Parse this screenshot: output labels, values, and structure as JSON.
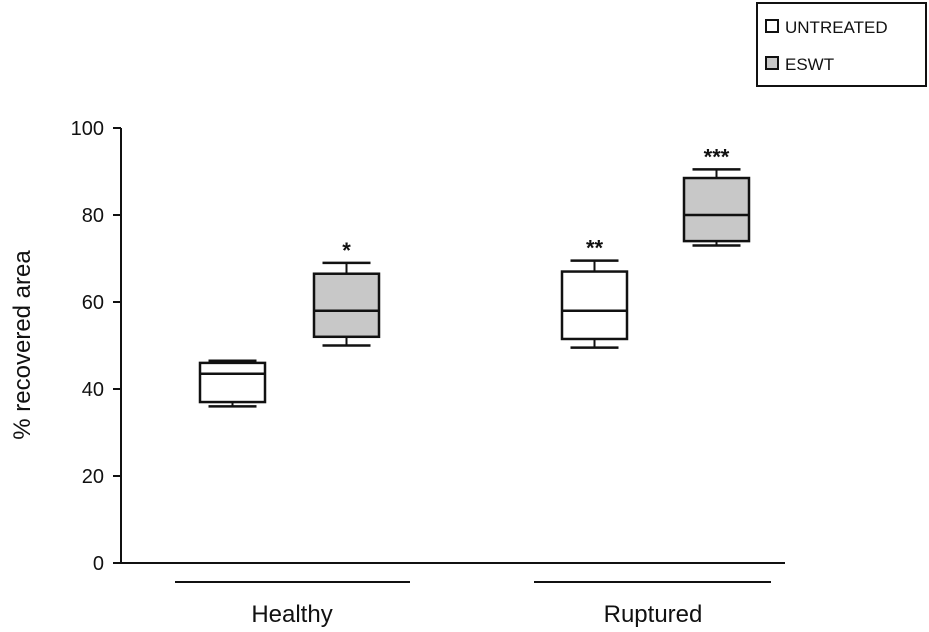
{
  "chart_data": {
    "type": "box",
    "ylabel": "% recovered area",
    "ylim": [
      0,
      100
    ],
    "yticks": [
      0,
      20,
      40,
      60,
      80,
      100
    ],
    "groups": [
      "Healthy",
      "Ruptured"
    ],
    "legend": {
      "placement": "top-right",
      "entries": [
        {
          "label": "UNTREATED",
          "color": "#ffffff"
        },
        {
          "label": "ESWT",
          "color": "#c8c8c8"
        }
      ]
    },
    "series": [
      {
        "name": "UNTREATED",
        "color": "#ffffff",
        "boxes": [
          {
            "group": "Healthy",
            "min": 36,
            "q1": 37,
            "median": 43.5,
            "q3": 46,
            "max": 46.5,
            "annotation": ""
          },
          {
            "group": "Ruptured",
            "min": 49.5,
            "q1": 51.5,
            "median": 58,
            "q3": 67,
            "max": 69.5,
            "annotation": "**"
          }
        ]
      },
      {
        "name": "ESWT",
        "color": "#c8c8c8",
        "boxes": [
          {
            "group": "Healthy",
            "min": 50,
            "q1": 52,
            "median": 58,
            "q3": 66.5,
            "max": 69,
            "annotation": "*"
          },
          {
            "group": "Ruptured",
            "min": 73,
            "q1": 74,
            "median": 80,
            "q3": 88.5,
            "max": 90.5,
            "annotation": "***"
          }
        ]
      }
    ]
  }
}
